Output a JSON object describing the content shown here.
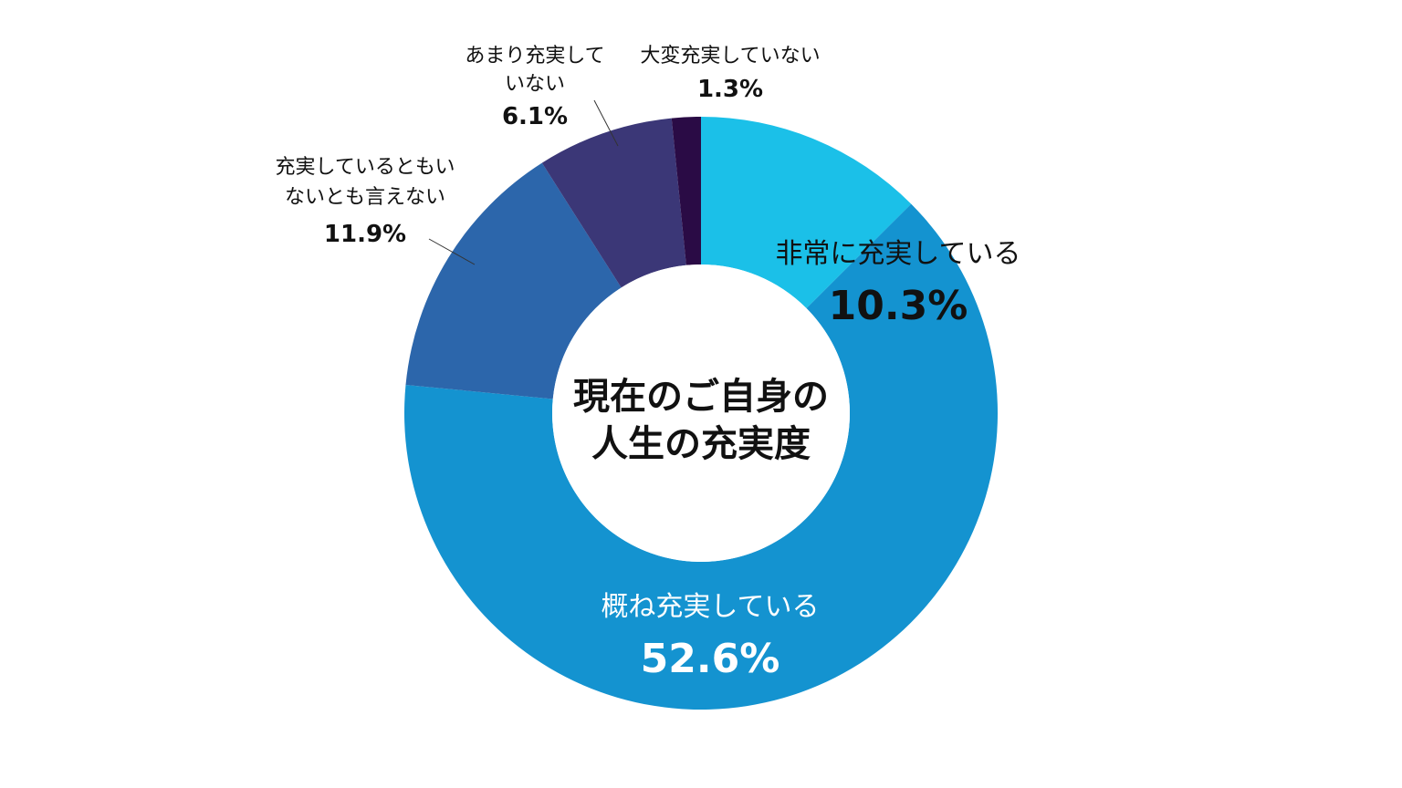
{
  "chart_data": {
    "type": "pie",
    "title": [
      "現在のご自身の",
      "人生の充実度"
    ],
    "slices": [
      {
        "label": [
          "非常に充実している"
        ],
        "value": 10.3,
        "display": "10.3%",
        "color": "#1bc0e8",
        "label_color": "#111111"
      },
      {
        "label": [
          "概ね充実している"
        ],
        "value": 52.6,
        "display": "52.6%",
        "color": "#1493d0",
        "label_color": "#ffffff"
      },
      {
        "label": [
          "充実しているともい",
          "ないとも言えない"
        ],
        "value": 11.9,
        "display": "11.9%",
        "color": "#2c66ab",
        "label_color": "#111111"
      },
      {
        "label": [
          "あまり充実して",
          "いない"
        ],
        "value": 6.1,
        "display": "6.1%",
        "color": "#3b3777",
        "label_color": "#111111"
      },
      {
        "label": [
          "大変充実していない"
        ],
        "value": 1.3,
        "display": "1.3%",
        "color": "#2a0b45",
        "label_color": "#111111"
      }
    ]
  }
}
